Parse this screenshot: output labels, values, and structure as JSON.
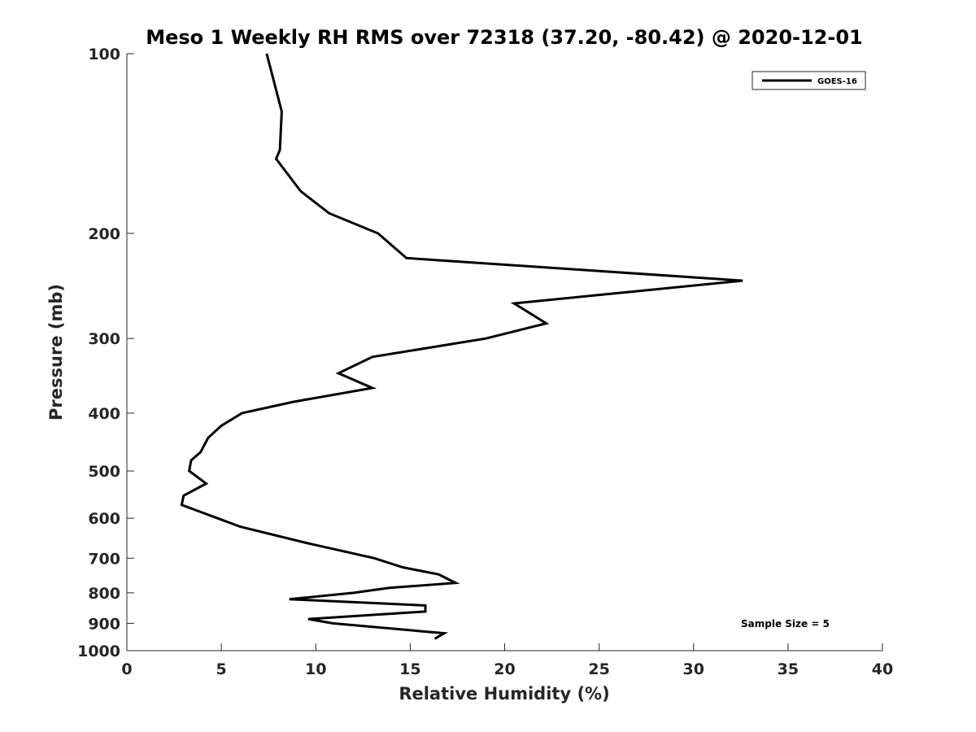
{
  "chart_data": {
    "type": "line",
    "title": "Meso 1 Weekly RH RMS over 72318 (37.20, -80.42) @ 2020-12-01",
    "xlabel": "Relative Humidity (%)",
    "ylabel": "Pressure (mb)",
    "xlim": [
      0,
      40
    ],
    "ylim": [
      1000,
      100
    ],
    "yscale": "log",
    "xticks": [
      "0",
      "5",
      "10",
      "15",
      "20",
      "25",
      "30",
      "35",
      "40"
    ],
    "yticks": [
      "100",
      "200",
      "300",
      "400",
      "500",
      "600",
      "700",
      "800",
      "900",
      "1000"
    ],
    "grid": false,
    "legend_position": "top-right",
    "series": [
      {
        "name": "GOES-16",
        "color": "#000000",
        "x": [
          7.4,
          8.2,
          8.1,
          7.9,
          9.2,
          10.7,
          13.3,
          14.8,
          32.6,
          20.5,
          22.2,
          19.0,
          13.0,
          11.2,
          13.0,
          8.8,
          6.1,
          5.0,
          4.3,
          3.9,
          3.4,
          3.3,
          4.2,
          3.0,
          2.9,
          4.8,
          6.0,
          9.5,
          13.1,
          14.6,
          16.5,
          17.4,
          13.9,
          12.0,
          8.6,
          15.8,
          15.8,
          9.6,
          10.9,
          16.8,
          16.3
        ],
        "y": [
          100,
          125,
          145,
          150,
          170,
          185,
          200,
          220,
          240,
          262,
          283,
          300,
          322,
          343,
          363,
          383,
          400,
          420,
          440,
          465,
          480,
          500,
          525,
          550,
          570,
          600,
          620,
          660,
          700,
          725,
          745,
          770,
          785,
          800,
          820,
          840,
          860,
          885,
          900,
          935,
          955
        ]
      }
    ],
    "annotation": "Sample Size = 5"
  }
}
